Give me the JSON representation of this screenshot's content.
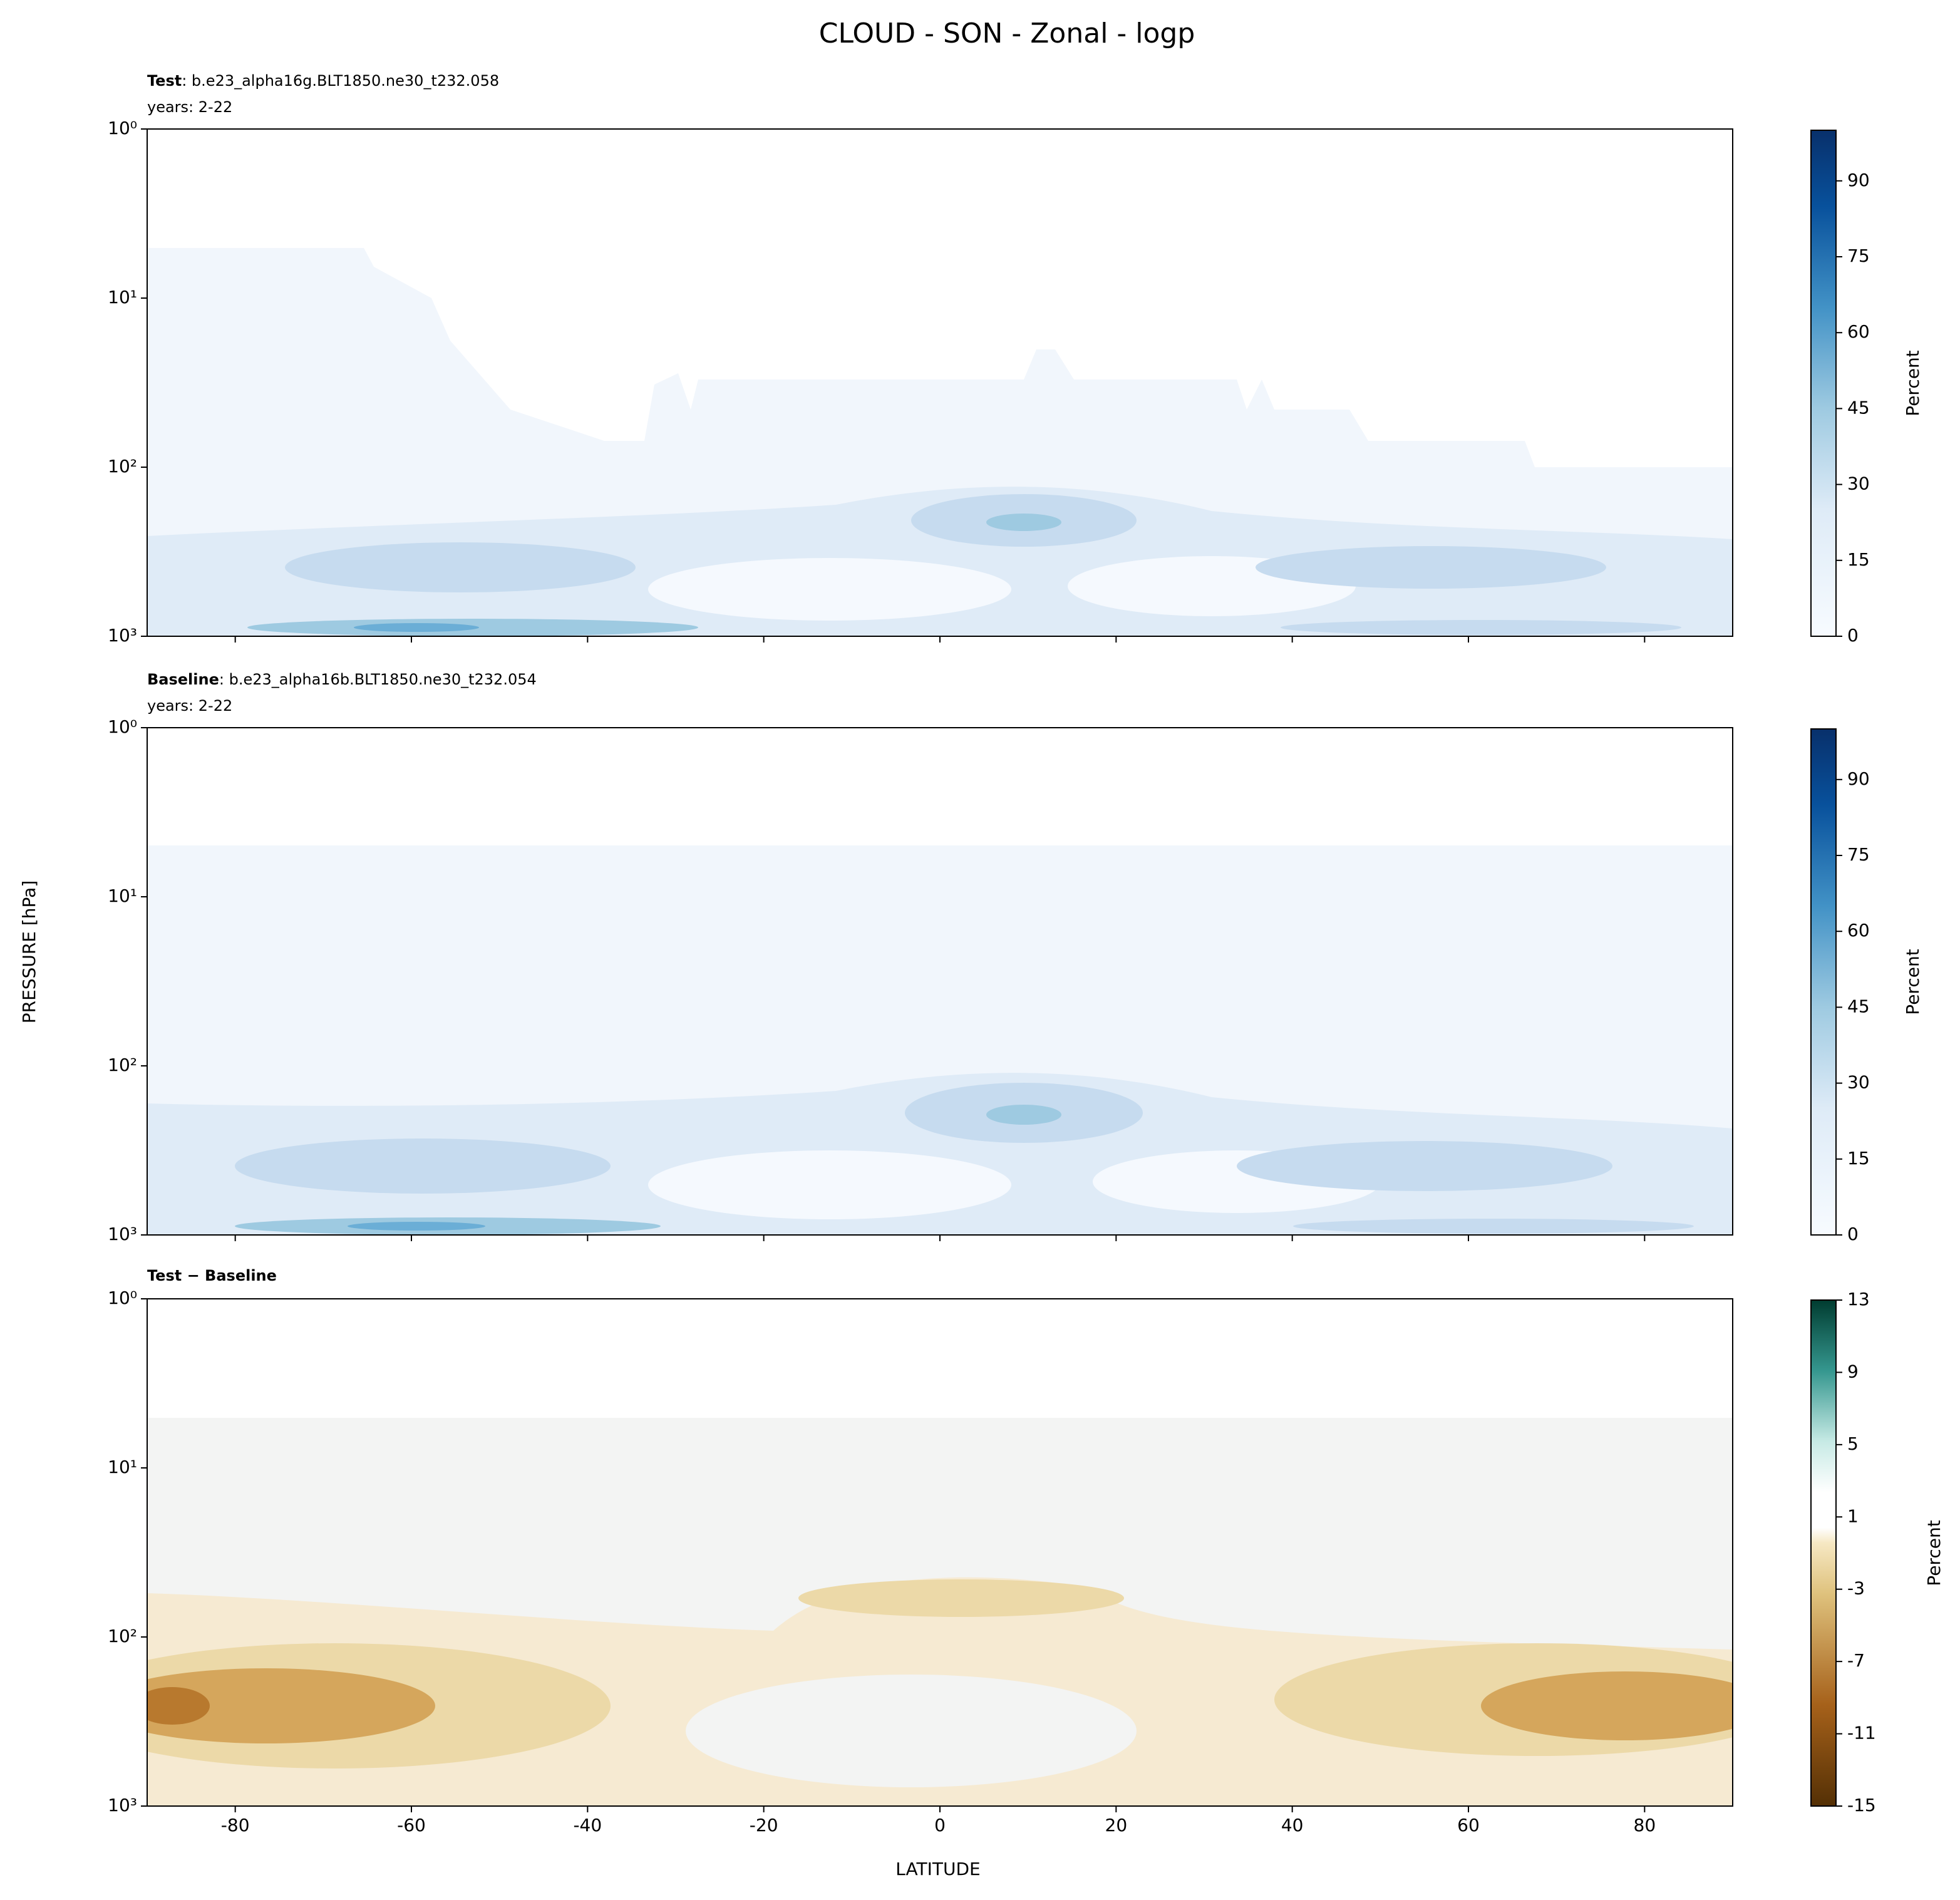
{
  "title": "CLOUD - SON - Zonal - logp",
  "xlabel": "LATITUDE",
  "ylabel": "PRESSURE [hPa]",
  "xlim": [
    -90,
    90
  ],
  "xticks": [
    -80,
    -60,
    -40,
    -20,
    0,
    20,
    40,
    60,
    80
  ],
  "chart_data": [
    {
      "type": "contour",
      "title_bold": "Test",
      "title": ": b.e23_alpha16g.BLT1850.ne30_t232.058",
      "subtitle": "years: 2-22",
      "log_y": true,
      "ylim": [
        1000,
        1
      ],
      "yticks": [
        {
          "value": 1,
          "label": "10⁰"
        },
        {
          "value": 10,
          "label": "10¹"
        },
        {
          "value": 100,
          "label": "10²"
        },
        {
          "value": 1000,
          "label": "10³"
        }
      ],
      "colorbar": {
        "label": "Percent",
        "cmap": "Blues",
        "lim": [
          0,
          100
        ],
        "ticks": [
          0,
          15,
          30,
          45,
          60,
          75,
          90
        ]
      }
    },
    {
      "type": "contour",
      "title_bold": "Baseline",
      "title": ": b.e23_alpha16b.BLT1850.ne30_t232.054",
      "subtitle": "years: 2-22",
      "log_y": true,
      "ylim": [
        1000,
        1
      ],
      "yticks": [
        {
          "value": 1,
          "label": "10⁰"
        },
        {
          "value": 10,
          "label": "10¹"
        },
        {
          "value": 100,
          "label": "10²"
        },
        {
          "value": 1000,
          "label": "10³"
        }
      ],
      "colorbar": {
        "label": "Percent",
        "cmap": "Blues",
        "lim": [
          0,
          100
        ],
        "ticks": [
          0,
          15,
          30,
          45,
          60,
          75,
          90
        ]
      }
    },
    {
      "type": "contour",
      "title_bold": "Test − Baseline",
      "log_y": true,
      "ylim": [
        1000,
        1
      ],
      "yticks": [
        {
          "value": 1,
          "label": "10⁰"
        },
        {
          "value": 10,
          "label": "10¹"
        },
        {
          "value": 100,
          "label": "10²"
        },
        {
          "value": 1000,
          "label": "10³"
        }
      ],
      "colorbar": {
        "label": "Percent",
        "cmap": "BrBG",
        "lim": [
          -15,
          13
        ],
        "ticks": [
          -15,
          -11,
          -7,
          -3,
          1,
          5,
          9,
          13
        ]
      }
    }
  ]
}
